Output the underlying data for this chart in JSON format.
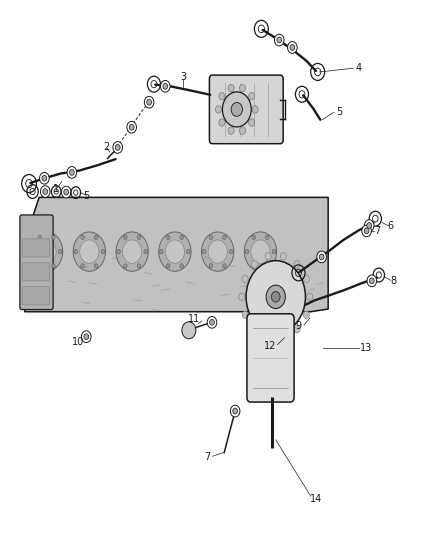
{
  "bg_color": "#ffffff",
  "fig_width": 4.38,
  "fig_height": 5.33,
  "dpi": 100,
  "line_color": "#1a1a1a",
  "part_fill": "#d4d4d4",
  "engine_fill": "#bebebe",
  "filter_fill": "#d8d8d8",
  "canister_fill": "#e0e0e0",
  "label_fs": 7
}
